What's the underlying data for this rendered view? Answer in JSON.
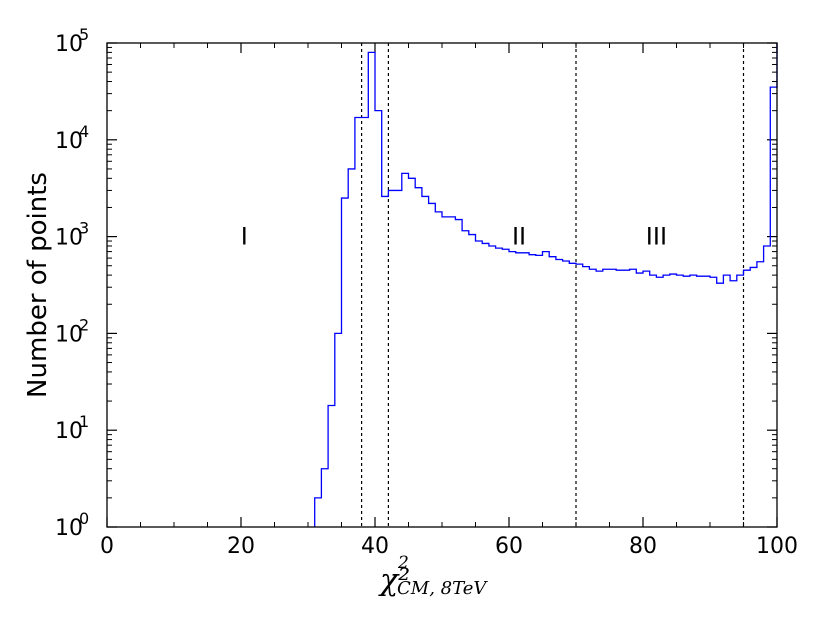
{
  "chart_data": {
    "type": "histogram",
    "xlabel": "χ²",
    "xlabel_subscript": "CM, 8TeV",
    "xlabel_superscript": "2",
    "ylabel": "Number of points",
    "xlim": [
      0,
      100
    ],
    "ylim": [
      1,
      100000
    ],
    "yscale": "log",
    "x_ticks": [
      "0",
      "20",
      "40",
      "60",
      "80",
      "100"
    ],
    "x_tick_values": [
      0,
      20,
      40,
      60,
      80,
      100
    ],
    "y_ticks": [
      {
        "base": "10",
        "exp": "0",
        "value": 1
      },
      {
        "base": "10",
        "exp": "1",
        "value": 10
      },
      {
        "base": "10",
        "exp": "2",
        "value": 100
      },
      {
        "base": "10",
        "exp": "3",
        "value": 1000
      },
      {
        "base": "10",
        "exp": "4",
        "value": 10000
      },
      {
        "base": "10",
        "exp": "5",
        "value": 100000
      }
    ],
    "line_color": "#0000ff",
    "bin_width": 1,
    "bin_edges_start": 31,
    "counts": [
      2,
      4,
      18,
      100,
      2500,
      5000,
      17000,
      17000,
      80000,
      20000,
      2600,
      3000,
      3000,
      4500,
      4000,
      3200,
      2600,
      2200,
      1800,
      1600,
      1600,
      1500,
      1150,
      1050,
      900,
      850,
      800,
      760,
      740,
      700,
      680,
      680,
      650,
      640,
      700,
      620,
      580,
      560,
      530,
      520,
      490,
      460,
      440,
      460,
      460,
      450,
      450,
      460,
      420,
      440,
      400,
      380,
      400,
      410,
      400,
      390,
      400,
      390,
      390,
      380,
      330,
      400,
      350,
      400,
      450,
      480,
      550,
      800,
      35000
    ],
    "dividers": [
      38,
      42,
      70,
      95
    ],
    "regions": [
      {
        "label": "I",
        "x": 20.5,
        "y": 1000
      },
      {
        "label": "II",
        "x": 61.5,
        "y": 1000
      },
      {
        "label": "III",
        "x": 82,
        "y": 1000
      }
    ]
  }
}
